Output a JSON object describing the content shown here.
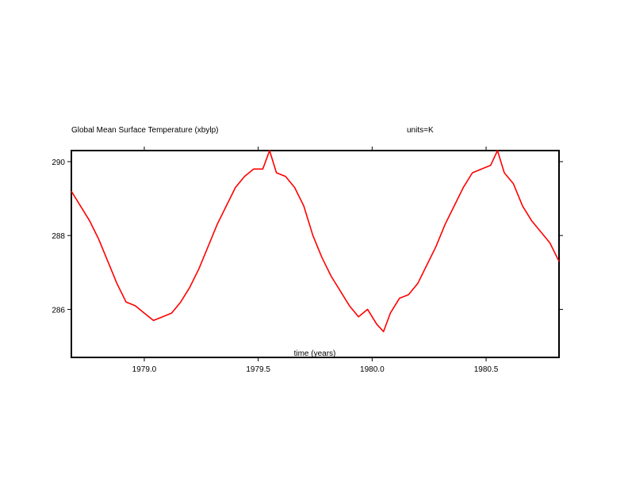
{
  "chart_data": {
    "type": "line",
    "title": "Global Mean Surface Temperature (xbylp)",
    "units_label": "units=K",
    "xlabel": "time (years)",
    "ylabel": "",
    "xlim": [
      1978.68,
      1980.82
    ],
    "ylim": [
      284.7,
      290.3
    ],
    "x_ticks": [
      1979.0,
      1979.5,
      1980.0,
      1980.5
    ],
    "x_tick_labels": [
      "1979.0",
      "1979.5",
      "1980.0",
      "1980.5"
    ],
    "y_ticks": [
      286,
      288,
      290
    ],
    "y_tick_labels": [
      "286",
      "288",
      "290"
    ],
    "grid": false,
    "legend": "none",
    "series": [
      {
        "color": "#ff0000",
        "x": [
          1978.68,
          1978.72,
          1978.76,
          1978.8,
          1978.84,
          1978.88,
          1978.92,
          1978.96,
          1979.0,
          1979.04,
          1979.08,
          1979.12,
          1979.16,
          1979.2,
          1979.24,
          1979.28,
          1979.32,
          1979.36,
          1979.4,
          1979.44,
          1979.48,
          1979.52,
          1979.55,
          1979.58,
          1979.62,
          1979.66,
          1979.7,
          1979.74,
          1979.78,
          1979.82,
          1979.86,
          1979.9,
          1979.94,
          1979.98,
          1980.02,
          1980.05,
          1980.08,
          1980.12,
          1980.16,
          1980.2,
          1980.24,
          1980.28,
          1980.32,
          1980.36,
          1980.4,
          1980.44,
          1980.48,
          1980.52,
          1980.55,
          1980.58,
          1980.62,
          1980.66,
          1980.7,
          1980.74,
          1980.78,
          1980.82
        ],
        "y": [
          289.2,
          288.8,
          288.4,
          287.9,
          287.3,
          286.7,
          286.2,
          286.1,
          285.9,
          285.7,
          285.8,
          285.9,
          286.2,
          286.6,
          287.1,
          287.7,
          288.3,
          288.8,
          289.3,
          289.6,
          289.8,
          289.8,
          290.3,
          289.7,
          289.6,
          289.3,
          288.8,
          288.0,
          287.4,
          286.9,
          286.5,
          286.1,
          285.8,
          286.0,
          285.6,
          285.4,
          285.9,
          286.3,
          286.4,
          286.7,
          287.2,
          287.7,
          288.3,
          288.8,
          289.3,
          289.7,
          289.8,
          289.9,
          290.3,
          289.7,
          289.4,
          288.8,
          288.4,
          288.1,
          287.8,
          287.3
        ]
      }
    ]
  }
}
